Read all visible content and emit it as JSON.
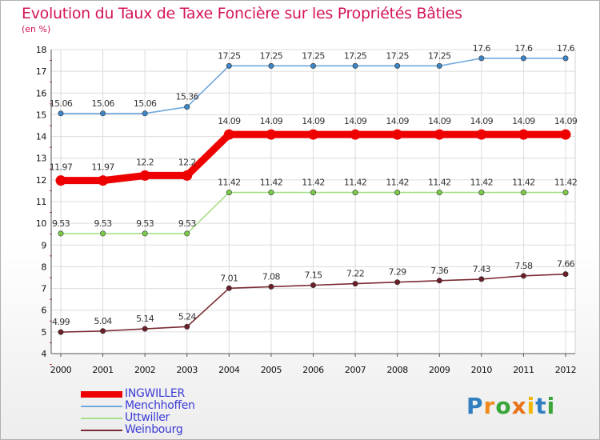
{
  "title": "Evolution du Taux de Taxe Foncière sur les Propriétés Bâties",
  "subtitle": "(en %)",
  "logo": {
    "text": "Proxiti",
    "letters": [
      {
        "ch": "P",
        "color": "#2f7fc1"
      },
      {
        "ch": "r",
        "color": "#f08a1c"
      },
      {
        "ch": "o",
        "color": "#3aa63a"
      },
      {
        "ch": "x",
        "color": "#e8731a"
      },
      {
        "ch": "i",
        "color": "#f2b705"
      },
      {
        "ch": "t",
        "color": "#2f7fc1"
      },
      {
        "ch": "i",
        "color": "#3aa63a"
      }
    ]
  },
  "chart_data": {
    "type": "line",
    "title": "Evolution du Taux de Taxe Foncière sur les Propriétés Bâties",
    "ylabel": "(en %)",
    "xlabel": "",
    "ylim": [
      4,
      18
    ],
    "yticks": [
      4,
      5,
      6,
      7,
      8,
      9,
      10,
      11,
      12,
      13,
      14,
      15,
      16,
      17,
      18
    ],
    "categories": [
      "2000",
      "2001",
      "2002",
      "2003",
      "2004",
      "2005",
      "2006",
      "2007",
      "2008",
      "2009",
      "2010",
      "2011",
      "2012"
    ],
    "grid": true,
    "legend": "bottom-left",
    "series": [
      {
        "name": "INGWILLER",
        "color": "#ee0000",
        "marker_color": "#ee0000",
        "emphasis": true,
        "values": [
          11.97,
          11.97,
          12.2,
          12.2,
          14.09,
          14.09,
          14.09,
          14.09,
          14.09,
          14.09,
          14.09,
          14.09,
          14.09
        ],
        "labels": [
          "11.97",
          "11.97",
          "12.2",
          "12.2",
          "14.09",
          "14.09",
          "14.09",
          "14.09",
          "14.09",
          "14.09",
          "14.09",
          "14.09",
          "14.09"
        ]
      },
      {
        "name": "Menchhoffen",
        "color": "#6fa8dc",
        "marker_color": "#3d85c6",
        "emphasis": false,
        "values": [
          15.06,
          15.06,
          15.06,
          15.36,
          17.25,
          17.25,
          17.25,
          17.25,
          17.25,
          17.25,
          17.6,
          17.6,
          17.6
        ],
        "labels": [
          "15.06",
          "15.06",
          "15.06",
          "15.36",
          "17.25",
          "17.25",
          "17.25",
          "17.25",
          "17.25",
          "17.25",
          "17.6",
          "17.6",
          "17.6"
        ]
      },
      {
        "name": "Uttwiller",
        "color": "#a6e08a",
        "marker_color": "#7ccc4a",
        "emphasis": false,
        "values": [
          9.53,
          9.53,
          9.53,
          9.53,
          11.42,
          11.42,
          11.42,
          11.42,
          11.42,
          11.42,
          11.42,
          11.42,
          11.42
        ],
        "labels": [
          "9.53",
          "9.53",
          "9.53",
          "9.53",
          "11.42",
          "11.42",
          "11.42",
          "11.42",
          "11.42",
          "11.42",
          "11.42",
          "11.42",
          "11.42"
        ]
      },
      {
        "name": "Weinbourg",
        "color": "#7a2a32",
        "marker_color": "#6b1f28",
        "emphasis": false,
        "values": [
          4.99,
          5.04,
          5.14,
          5.24,
          7.01,
          7.08,
          7.15,
          7.22,
          7.29,
          7.36,
          7.43,
          7.58,
          7.66
        ],
        "labels": [
          "4.99",
          "5.04",
          "5.14",
          "5.24",
          "7.01",
          "7.08",
          "7.15",
          "7.22",
          "7.29",
          "7.36",
          "7.43",
          "7.58",
          "7.66"
        ]
      }
    ]
  }
}
